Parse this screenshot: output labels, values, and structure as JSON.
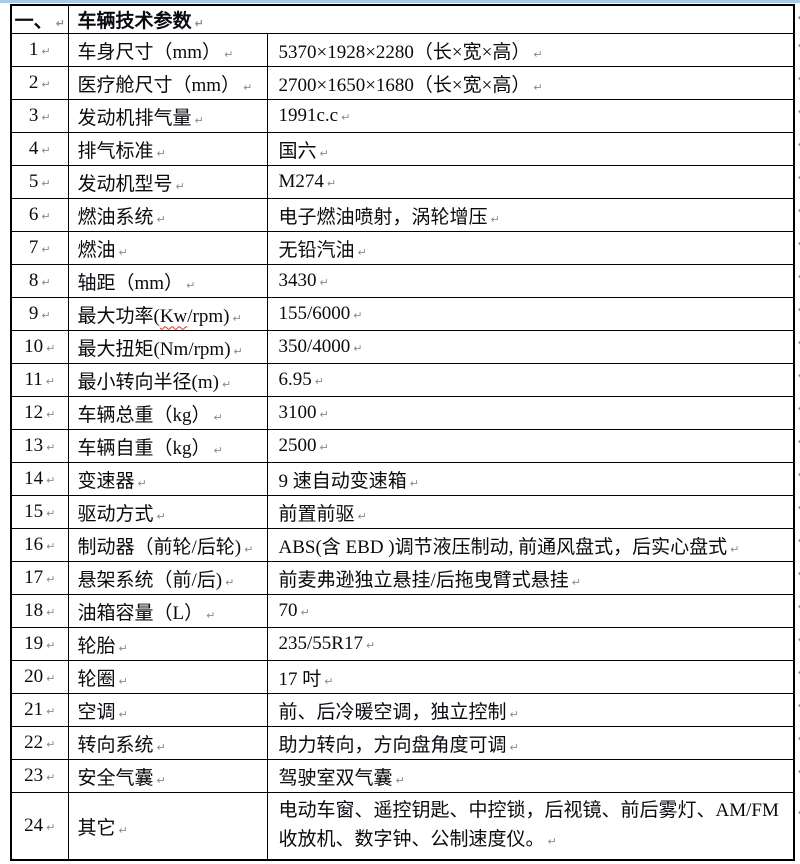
{
  "page": {
    "colors": {
      "top_strip": "#a9cbe7",
      "border": "#000000",
      "text": "#0a0a0f",
      "marker_gray": "#8a8a8a",
      "spellcheck_red": "#e03020"
    },
    "marker_glyph": "↵"
  },
  "table": {
    "header": {
      "index_label": "一、",
      "title": "车辆技术参数"
    },
    "rows": [
      {
        "no": "1",
        "label": "车身尺寸（mm）",
        "value": "5370×1928×2280（长×宽×高）"
      },
      {
        "no": "2",
        "label": "医疗舱尺寸（mm）",
        "value": "2700×1650×1680（长×宽×高）"
      },
      {
        "no": "3",
        "label": "发动机排气量",
        "value": "1991c.c"
      },
      {
        "no": "4",
        "label": "排气标准",
        "value": "国六"
      },
      {
        "no": "5",
        "label": "发动机型号",
        "value": "M274"
      },
      {
        "no": "6",
        "label": "燃油系统",
        "value": "电子燃油喷射，涡轮增压"
      },
      {
        "no": "7",
        "label": "燃油",
        "value": "无铅汽油"
      },
      {
        "no": "8",
        "label": "轴距（mm）",
        "value": "3430"
      },
      {
        "no": "9",
        "label": "最大功率(Kw/rpm)",
        "value": "155/6000",
        "misspelled": "Kw"
      },
      {
        "no": "10",
        "label": "最大扭矩(Nm/rpm)",
        "value": "350/4000"
      },
      {
        "no": "11",
        "label": "最小转向半径(m)",
        "value": "6.95"
      },
      {
        "no": "12",
        "label": "车辆总重（kg）",
        "value": "3100"
      },
      {
        "no": "13",
        "label": "车辆自重（kg）",
        "value": "2500"
      },
      {
        "no": "14",
        "label": "变速器",
        "value": "9 速自动变速箱"
      },
      {
        "no": "15",
        "label": "驱动方式",
        "value": "前置前驱"
      },
      {
        "no": "16",
        "label": "制动器（前轮/后轮)",
        "value": "ABS(含 EBD )调节液压制动, 前通风盘式，后实心盘式"
      },
      {
        "no": "17",
        "label": "悬架系统（前/后)",
        "value": "前麦弗逊独立悬挂/后拖曳臂式悬挂"
      },
      {
        "no": "18",
        "label": "油箱容量（L）",
        "value": "70"
      },
      {
        "no": "19",
        "label": "轮胎",
        "value": "235/55R17"
      },
      {
        "no": "20",
        "label": "轮圈",
        "value": "17 吋"
      },
      {
        "no": "21",
        "label": "空调",
        "value": "前、后冷暖空调，独立控制"
      },
      {
        "no": "22",
        "label": "转向系统",
        "value": "助力转向，方向盘角度可调"
      },
      {
        "no": "23",
        "label": "安全气囊",
        "value": "驾驶室双气囊"
      },
      {
        "no": "24",
        "label": "其它",
        "value": "电动车窗、遥控钥匙、中控锁，后视镜、前后雾灯、AM/FM 收放机、数字钟、公制速度仪。"
      }
    ]
  }
}
